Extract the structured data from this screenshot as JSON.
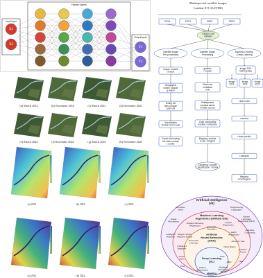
{
  "network": {
    "input_title": "Input layer",
    "hidden_title": "Hidden layers",
    "output_title": "Output layer",
    "inputs": [
      "X1",
      "X2"
    ],
    "outputs": [
      "Y1",
      "Y2"
    ]
  },
  "flowchart": {
    "title": "Multispectral satellite images",
    "subtitle": "Landsat 8-9 OLI/TIRS",
    "years": [
      "2014",
      "2021",
      "2022",
      "2023"
    ],
    "software": [
      "GRASS GIS",
      "software"
    ],
    "branches": [
      [
        "Satellite Image",
        "Pre-processing"
      ],
      [
        "Satellite Image",
        "Processing"
      ],
      [
        "Machine Learning",
        "/ Deep Learning"
      ]
    ],
    "preprocessing": [
      [
        "Import: module",
        "r.import"
      ],
      [
        "Geographic",
        "extent: module",
        "g.region"
      ],
      [
        "Listing the",
        "files: module",
        "g.list rast"
      ],
      [
        "Visualization",
        "module d.mon wx0"
      ],
      [
        "Export and saving",
        "the data: module",
        "r.out.file"
      ]
    ],
    "processing": [
      [
        "gdalinfo",
        "r.in.gdal"
      ],
      [
        "Check the",
        "metadata",
        "r.info"
      ],
      [
        "Multispectral",
        "Landsat bands",
        "module i.group"
      ],
      [
        "Color composites",
        "module i.composite"
      ],
      [
        "Mapping: module",
        "d.rast, d.legend"
      ],
      [
        "Clustering: i.cluster",
        "Classification: i.maxlik"
      ]
    ],
    "training": [
      "Image 2014",
      "training data"
    ],
    "images": [
      [
        "Image",
        "2021"
      ],
      [
        "Image",
        "2022"
      ],
      [
        "Image",
        "2023"
      ]
    ],
    "learning": [
      [
        "i.learn.train"
      ],
      [
        "r.random"
      ],
      [
        "r.learn.predict"
      ],
      [
        "r.category"
      ],
      [
        "Mapping",
        "d.rast.legend"
      ]
    ]
  },
  "scenes": {
    "captions": [
      "(a) March 2014",
      "(b) November 2014",
      "(c) March 2021",
      "(d) November 2021",
      "(e) March 2022",
      "(f) November 2022",
      "(g) March 2023",
      "(h) November 2023"
    ]
  },
  "maps": {
    "captions": [
      "(a) 2021",
      "(b) 2022",
      "(c) 2023",
      "(a) 2021",
      "(b) 2022",
      "(c) 2023"
    ]
  },
  "venn": {
    "rings": [
      [
        "Artificial Intelligence",
        "(AI)"
      ],
      [
        "Machine Learning",
        "Algorithms (GRASS GIS)"
      ],
      [
        "Artificial",
        "Neural Networks",
        "(ANN)"
      ],
      [
        "Deep Learning",
        "(DL)"
      ]
    ],
    "terms": [
      [
        "Computer",
        "Vision"
      ],
      [
        "Programming",
        "Languages"
      ],
      [
        "Natural",
        "Language",
        "Processing (NLP)"
      ],
      [
        "Image",
        "Processing"
      ],
      [
        "Cognitive",
        "Computing"
      ],
      [
        "Intelligent",
        "Robotics"
      ],
      [
        "Gradient Boosting",
        "Regression"
      ],
      [
        "Logistic",
        "Regression"
      ],
      [
        "Support Vector",
        "Machine (SVM)"
      ],
      [
        "Earth",
        "Regression"
      ],
      [
        "Decision Tree"
      ],
      [
        "Random",
        "Forest"
      ],
      [
        "k-Nearest",
        "Neighbor"
      ],
      [
        "Quadratic",
        "Classifiers"
      ],
      [
        "Extra",
        "Trees"
      ],
      [
        "Ensemble",
        "Learning"
      ],
      [
        "Naive Bayes"
      ],
      [
        "PCA"
      ],
      [
        "LDA"
      ],
      [
        "Pattern",
        "Recognition"
      ],
      [
        "Multilayer",
        "Perceptron",
        "(MLP)"
      ],
      [
        "Modelling"
      ],
      [
        "CNN"
      ],
      [
        "RNN"
      ],
      [
        "Boltzmann",
        "Machine"
      ]
    ]
  }
}
